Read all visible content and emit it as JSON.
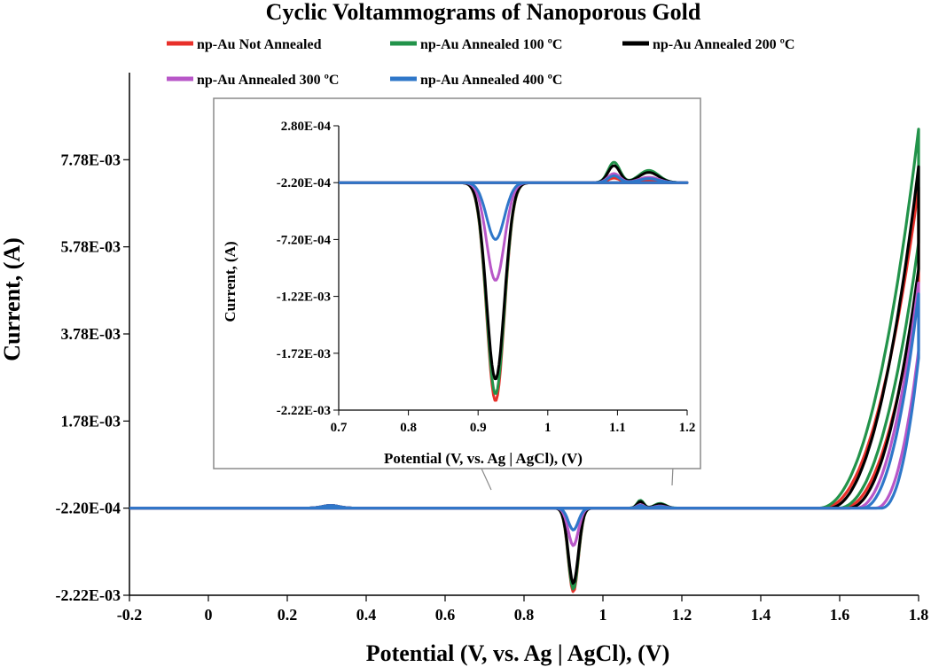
{
  "chart_data": {
    "type": "line",
    "title": "Cyclic Voltammograms of Nanoporous Gold",
    "xlabel": "Potential (V, vs. Ag | AgCl), (V)",
    "ylabel": "Current, (A)",
    "xlim": [
      -0.2,
      1.8
    ],
    "ylim": [
      -0.00222,
      0.00978
    ],
    "x_ticks": [
      "-0.2",
      "0",
      "0.2",
      "0.4",
      "0.6",
      "0.8",
      "1",
      "1.2",
      "1.4",
      "1.6",
      "1.8"
    ],
    "x_tick_values": [
      -0.2,
      0,
      0.2,
      0.4,
      0.6,
      0.8,
      1.0,
      1.2,
      1.4,
      1.6,
      1.8
    ],
    "y_ticks": [
      "-2.22E-03",
      "-2.20E-04",
      "1.78E-03",
      "3.78E-03",
      "5.78E-03",
      "7.78E-03"
    ],
    "y_tick_values": [
      -0.00222,
      -0.00022,
      0.00178,
      0.00378,
      0.00578,
      0.00778
    ],
    "legend": [
      "np-Au Not Annealed",
      "np-Au Annealed 100 ºC",
      "np-Au Annealed 200 ºC",
      "np-Au Annealed 300 ºC",
      "np-Au Annealed 400 ºC"
    ],
    "series": [
      {
        "name": "np-Au Not Annealed",
        "color": "#e8302a",
        "peak_min": -0.00214,
        "oxide_peak": 4e-05,
        "onset": 1.555,
        "final": 0.00715
      },
      {
        "name": "np-Au Annealed 100 ºC",
        "color": "#22934a",
        "peak_min": -0.00208,
        "oxide_peak": 0.00018,
        "onset": 1.545,
        "final": 0.00848
      },
      {
        "name": "np-Au Annealed 200 ºC",
        "color": "#000000",
        "peak_min": -0.00195,
        "oxide_peak": 0.00015,
        "onset": 1.57,
        "final": 0.00762
      },
      {
        "name": "np-Au Annealed 300 ºC",
        "color": "#b857c8",
        "peak_min": -0.00108,
        "oxide_peak": 8e-05,
        "onset": 1.64,
        "final": 0.00495
      },
      {
        "name": "np-Au Annealed 400 ºC",
        "color": "#2f77c9",
        "peak_min": -0.00072,
        "oxide_peak": 6e-05,
        "onset": 1.655,
        "final": 0.0047
      }
    ],
    "inset": {
      "xlabel": "Potential (V, vs. Ag | AgCl), (V)",
      "ylabel": "Current, (A)",
      "xlim": [
        0.7,
        1.2
      ],
      "ylim": [
        -0.00222,
        0.00028
      ],
      "x_ticks": [
        "0.7",
        "0.8",
        "0.9",
        "1",
        "1.1",
        "1.2"
      ],
      "x_tick_values": [
        0.7,
        0.8,
        0.9,
        1.0,
        1.1,
        1.2
      ],
      "y_ticks": [
        "2.80E-04",
        "-2.20E-04",
        "-7.20E-04",
        "-1.22E-03",
        "-1.72E-03",
        "-2.22E-03"
      ],
      "y_tick_values": [
        0.00028,
        -0.00022,
        -0.00072,
        -0.00122,
        -0.00172,
        -0.00222
      ]
    }
  }
}
